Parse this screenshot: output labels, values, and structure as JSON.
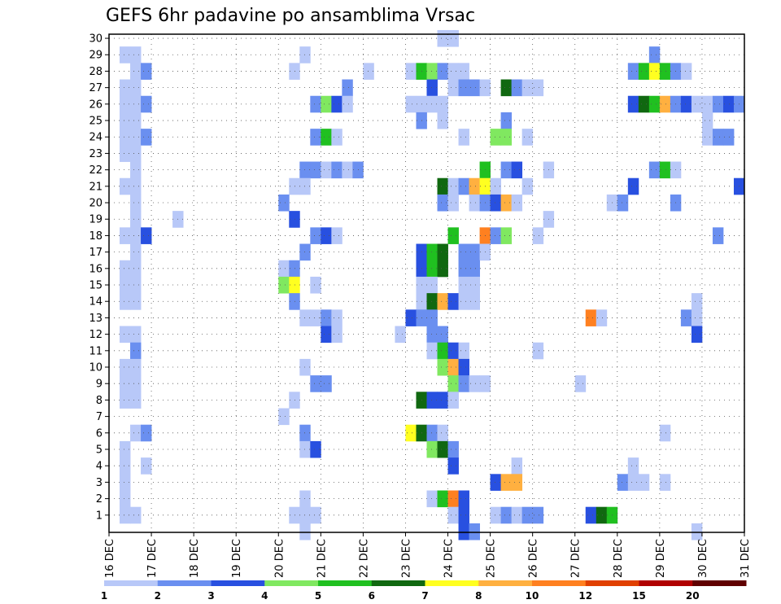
{
  "chart_data": {
    "type": "heatmap",
    "title": "GEFS 6hr padavine po ansamblima Vrsac",
    "x_tick_labels": [
      "16 DEC",
      "17 DEC",
      "18 DEC",
      "19 DEC",
      "20 DEC",
      "21 DEC",
      "22 DEC",
      "23 DEC",
      "24 DEC",
      "25 DEC",
      "26 DEC",
      "27 DEC",
      "28 DEC",
      "29 DEC",
      "30 DEC",
      "31 DEC"
    ],
    "y_tick_labels": [
      "1",
      "2",
      "3",
      "4",
      "5",
      "6",
      "7",
      "8",
      "9",
      "10",
      "11",
      "12",
      "13",
      "14",
      "15",
      "16",
      "17",
      "18",
      "19",
      "20",
      "21",
      "22",
      "23",
      "24",
      "25",
      "26",
      "27",
      "28",
      "29",
      "30"
    ],
    "x_range": [
      "16 DEC",
      "31 DEC"
    ],
    "y_range": [
      0,
      30
    ],
    "time_steps_per_day": 4,
    "grid": true,
    "colorbar": {
      "labels": [
        "1",
        "2",
        "3",
        "4",
        "5",
        "6",
        "7",
        "8",
        "10",
        "12",
        "15",
        "20"
      ],
      "colors": [
        "#b8c8f8",
        "#6a8ff0",
        "#2850e0",
        "#80e860",
        "#20c020",
        "#106810",
        "#ffff20",
        "#ffb040",
        "#ff8020",
        "#e04000",
        "#b00000",
        "#600000"
      ]
    },
    "cells": [
      [
        30,
        31,
        1
      ],
      [
        30,
        32,
        1
      ],
      [
        29,
        1,
        1
      ],
      [
        29,
        2,
        1
      ],
      [
        29,
        18,
        1
      ],
      [
        29,
        51,
        2
      ],
      [
        28,
        2,
        1
      ],
      [
        28,
        3,
        2
      ],
      [
        28,
        17,
        1
      ],
      [
        28,
        24,
        1
      ],
      [
        28,
        28,
        1
      ],
      [
        28,
        29,
        5
      ],
      [
        28,
        30,
        4
      ],
      [
        28,
        31,
        2
      ],
      [
        28,
        32,
        1
      ],
      [
        28,
        33,
        1
      ],
      [
        28,
        49,
        2
      ],
      [
        28,
        50,
        5
      ],
      [
        28,
        51,
        7
      ],
      [
        28,
        52,
        5
      ],
      [
        28,
        53,
        2
      ],
      [
        28,
        54,
        1
      ],
      [
        27,
        1,
        1
      ],
      [
        27,
        2,
        1
      ],
      [
        27,
        22,
        2
      ],
      [
        27,
        30,
        3
      ],
      [
        27,
        32,
        1
      ],
      [
        27,
        33,
        2
      ],
      [
        27,
        34,
        2
      ],
      [
        27,
        35,
        1
      ],
      [
        27,
        37,
        6
      ],
      [
        27,
        38,
        2
      ],
      [
        27,
        39,
        1
      ],
      [
        27,
        40,
        1
      ],
      [
        26,
        1,
        1
      ],
      [
        26,
        2,
        1
      ],
      [
        26,
        3,
        2
      ],
      [
        26,
        19,
        2
      ],
      [
        26,
        20,
        4
      ],
      [
        26,
        21,
        3
      ],
      [
        26,
        22,
        1
      ],
      [
        26,
        28,
        1
      ],
      [
        26,
        29,
        1
      ],
      [
        26,
        30,
        1
      ],
      [
        26,
        31,
        1
      ],
      [
        26,
        49,
        3
      ],
      [
        26,
        50,
        6
      ],
      [
        26,
        51,
        5
      ],
      [
        26,
        52,
        8
      ],
      [
        26,
        53,
        2
      ],
      [
        26,
        54,
        3
      ],
      [
        26,
        55,
        1
      ],
      [
        26,
        56,
        1
      ],
      [
        26,
        57,
        2
      ],
      [
        26,
        58,
        3
      ],
      [
        26,
        59,
        2
      ],
      [
        25,
        1,
        1
      ],
      [
        25,
        2,
        1
      ],
      [
        25,
        29,
        2
      ],
      [
        25,
        31,
        1
      ],
      [
        25,
        37,
        2
      ],
      [
        25,
        56,
        1
      ],
      [
        24,
        1,
        1
      ],
      [
        24,
        2,
        1
      ],
      [
        24,
        3,
        2
      ],
      [
        24,
        19,
        2
      ],
      [
        24,
        20,
        5
      ],
      [
        24,
        21,
        1
      ],
      [
        24,
        33,
        1
      ],
      [
        24,
        36,
        4
      ],
      [
        24,
        37,
        4
      ],
      [
        24,
        39,
        1
      ],
      [
        24,
        56,
        1
      ],
      [
        24,
        57,
        2
      ],
      [
        24,
        58,
        2
      ],
      [
        23,
        1,
        1
      ],
      [
        23,
        2,
        1
      ],
      [
        22,
        2,
        1
      ],
      [
        22,
        18,
        2
      ],
      [
        22,
        19,
        2
      ],
      [
        22,
        20,
        1
      ],
      [
        22,
        21,
        2
      ],
      [
        22,
        22,
        1
      ],
      [
        22,
        23,
        2
      ],
      [
        22,
        35,
        5
      ],
      [
        22,
        37,
        2
      ],
      [
        22,
        38,
        3
      ],
      [
        22,
        41,
        1
      ],
      [
        22,
        51,
        2
      ],
      [
        22,
        52,
        5
      ],
      [
        22,
        53,
        1
      ],
      [
        21,
        1,
        1
      ],
      [
        21,
        2,
        1
      ],
      [
        21,
        17,
        1
      ],
      [
        21,
        18,
        1
      ],
      [
        21,
        31,
        6
      ],
      [
        21,
        32,
        1
      ],
      [
        21,
        33,
        2
      ],
      [
        21,
        34,
        8
      ],
      [
        21,
        35,
        7
      ],
      [
        21,
        36,
        1
      ],
      [
        21,
        39,
        1
      ],
      [
        21,
        49,
        3
      ],
      [
        21,
        59,
        3
      ],
      [
        20,
        2,
        1
      ],
      [
        20,
        16,
        2
      ],
      [
        20,
        31,
        2
      ],
      [
        20,
        32,
        1
      ],
      [
        20,
        34,
        1
      ],
      [
        20,
        35,
        2
      ],
      [
        20,
        36,
        3
      ],
      [
        20,
        37,
        8
      ],
      [
        20,
        38,
        1
      ],
      [
        20,
        47,
        1
      ],
      [
        20,
        48,
        2
      ],
      [
        20,
        53,
        2
      ],
      [
        19,
        2,
        1
      ],
      [
        19,
        6,
        1
      ],
      [
        19,
        17,
        3
      ],
      [
        19,
        41,
        1
      ],
      [
        18,
        1,
        1
      ],
      [
        18,
        2,
        1
      ],
      [
        18,
        3,
        3
      ],
      [
        18,
        19,
        2
      ],
      [
        18,
        20,
        3
      ],
      [
        18,
        21,
        1
      ],
      [
        18,
        32,
        5
      ],
      [
        18,
        35,
        9
      ],
      [
        18,
        36,
        2
      ],
      [
        18,
        37,
        4
      ],
      [
        18,
        40,
        1
      ],
      [
        18,
        57,
        2
      ],
      [
        17,
        2,
        1
      ],
      [
        17,
        18,
        2
      ],
      [
        17,
        29,
        3
      ],
      [
        17,
        30,
        5
      ],
      [
        17,
        31,
        6
      ],
      [
        17,
        33,
        2
      ],
      [
        17,
        34,
        2
      ],
      [
        17,
        35,
        1
      ],
      [
        16,
        1,
        1
      ],
      [
        16,
        2,
        1
      ],
      [
        16,
        16,
        1
      ],
      [
        16,
        17,
        2
      ],
      [
        16,
        29,
        3
      ],
      [
        16,
        30,
        5
      ],
      [
        16,
        31,
        6
      ],
      [
        16,
        33,
        2
      ],
      [
        16,
        34,
        2
      ],
      [
        15,
        1,
        1
      ],
      [
        15,
        2,
        1
      ],
      [
        15,
        16,
        4
      ],
      [
        15,
        17,
        7
      ],
      [
        15,
        19,
        1
      ],
      [
        15,
        29,
        1
      ],
      [
        15,
        30,
        1
      ],
      [
        15,
        33,
        1
      ],
      [
        15,
        34,
        1
      ],
      [
        14,
        1,
        1
      ],
      [
        14,
        2,
        1
      ],
      [
        14,
        17,
        2
      ],
      [
        14,
        29,
        1
      ],
      [
        14,
        30,
        6
      ],
      [
        14,
        31,
        8
      ],
      [
        14,
        32,
        3
      ],
      [
        14,
        33,
        1
      ],
      [
        14,
        34,
        1
      ],
      [
        14,
        55,
        1
      ],
      [
        13,
        18,
        1
      ],
      [
        13,
        19,
        1
      ],
      [
        13,
        20,
        2
      ],
      [
        13,
        21,
        1
      ],
      [
        13,
        28,
        3
      ],
      [
        13,
        29,
        2
      ],
      [
        13,
        30,
        2
      ],
      [
        13,
        45,
        9
      ],
      [
        13,
        46,
        1
      ],
      [
        13,
        54,
        2
      ],
      [
        13,
        55,
        1
      ],
      [
        12,
        1,
        1
      ],
      [
        12,
        2,
        1
      ],
      [
        12,
        20,
        3
      ],
      [
        12,
        21,
        1
      ],
      [
        12,
        27,
        1
      ],
      [
        12,
        30,
        2
      ],
      [
        12,
        31,
        2
      ],
      [
        12,
        55,
        3
      ],
      [
        11,
        2,
        2
      ],
      [
        11,
        30,
        1
      ],
      [
        11,
        31,
        5
      ],
      [
        11,
        32,
        3
      ],
      [
        11,
        33,
        1
      ],
      [
        11,
        40,
        1
      ],
      [
        10,
        1,
        1
      ],
      [
        10,
        2,
        1
      ],
      [
        10,
        18,
        1
      ],
      [
        10,
        31,
        4
      ],
      [
        10,
        32,
        8
      ],
      [
        10,
        33,
        3
      ],
      [
        9,
        1,
        1
      ],
      [
        9,
        2,
        1
      ],
      [
        9,
        19,
        2
      ],
      [
        9,
        20,
        2
      ],
      [
        9,
        32,
        4
      ],
      [
        9,
        33,
        2
      ],
      [
        9,
        34,
        1
      ],
      [
        9,
        35,
        1
      ],
      [
        9,
        44,
        1
      ],
      [
        8,
        1,
        1
      ],
      [
        8,
        2,
        1
      ],
      [
        8,
        17,
        1
      ],
      [
        8,
        29,
        6
      ],
      [
        8,
        30,
        3
      ],
      [
        8,
        31,
        3
      ],
      [
        8,
        32,
        1
      ],
      [
        7,
        16,
        1
      ],
      [
        6,
        2,
        1
      ],
      [
        6,
        3,
        2
      ],
      [
        6,
        18,
        2
      ],
      [
        6,
        28,
        7
      ],
      [
        6,
        29,
        6
      ],
      [
        6,
        30,
        2
      ],
      [
        6,
        31,
        1
      ],
      [
        6,
        52,
        1
      ],
      [
        5,
        1,
        1
      ],
      [
        5,
        18,
        1
      ],
      [
        5,
        19,
        3
      ],
      [
        5,
        30,
        4
      ],
      [
        5,
        31,
        6
      ],
      [
        5,
        32,
        2
      ],
      [
        4,
        1,
        1
      ],
      [
        4,
        3,
        1
      ],
      [
        4,
        32,
        3
      ],
      [
        4,
        38,
        1
      ],
      [
        4,
        49,
        1
      ],
      [
        3,
        1,
        1
      ],
      [
        3,
        36,
        3
      ],
      [
        3,
        37,
        8
      ],
      [
        3,
        38,
        8
      ],
      [
        3,
        48,
        2
      ],
      [
        3,
        49,
        1
      ],
      [
        3,
        50,
        1
      ],
      [
        3,
        52,
        1
      ],
      [
        2,
        1,
        1
      ],
      [
        2,
        18,
        1
      ],
      [
        2,
        30,
        1
      ],
      [
        2,
        31,
        5
      ],
      [
        2,
        32,
        9
      ],
      [
        2,
        33,
        3
      ],
      [
        1,
        1,
        1
      ],
      [
        1,
        2,
        1
      ],
      [
        1,
        17,
        1
      ],
      [
        1,
        18,
        1
      ],
      [
        1,
        19,
        1
      ],
      [
        1,
        32,
        1
      ],
      [
        1,
        33,
        3
      ],
      [
        1,
        36,
        1
      ],
      [
        1,
        37,
        2
      ],
      [
        1,
        38,
        1
      ],
      [
        1,
        39,
        2
      ],
      [
        1,
        40,
        2
      ],
      [
        1,
        45,
        3
      ],
      [
        1,
        46,
        6
      ],
      [
        1,
        47,
        5
      ],
      [
        0,
        18,
        1
      ],
      [
        0,
        33,
        3
      ],
      [
        0,
        34,
        2
      ],
      [
        0,
        55,
        1
      ]
    ]
  }
}
